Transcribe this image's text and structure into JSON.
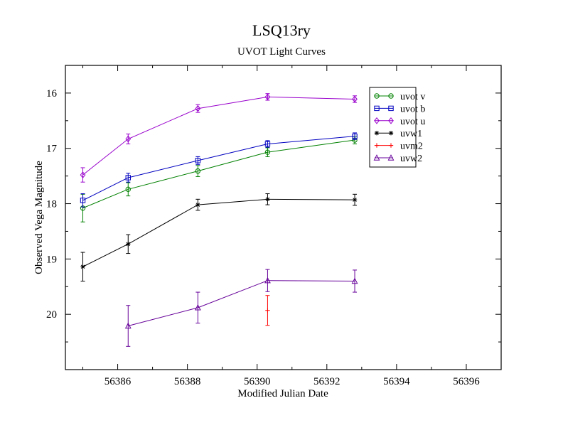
{
  "chart_data": {
    "type": "line",
    "title": "LSQ13ry",
    "subtitle": "UVOT Light Curves",
    "xlabel": "Modified Julian Date",
    "ylabel": "Observed Vega Magnitude",
    "xlim": [
      56384.5,
      56397.0
    ],
    "ylim": [
      21.0,
      15.5
    ],
    "y_inverted": true,
    "x_ticks": [
      56386,
      56388,
      56390,
      56392,
      56394,
      56396
    ],
    "y_ticks": [
      16,
      17,
      18,
      19,
      20
    ],
    "grid": false,
    "legend_position": "top-right",
    "series": [
      {
        "name": "uvot v",
        "color": "#008000",
        "marker": "circle",
        "connect": true,
        "x": [
          56385.0,
          56386.3,
          56388.3,
          56390.3,
          56392.8
        ],
        "y": [
          18.08,
          17.74,
          17.41,
          17.07,
          16.85
        ],
        "err": [
          0.25,
          0.12,
          0.1,
          0.08,
          0.07
        ]
      },
      {
        "name": "uvot b",
        "color": "#0000c0",
        "marker": "square",
        "connect": true,
        "x": [
          56385.0,
          56386.3,
          56388.3,
          56390.3,
          56392.8
        ],
        "y": [
          17.94,
          17.53,
          17.22,
          16.92,
          16.78
        ],
        "err": [
          0.12,
          0.08,
          0.07,
          0.06,
          0.06
        ]
      },
      {
        "name": "uvot u",
        "color": "#9900cc",
        "marker": "diamond",
        "connect": true,
        "x": [
          56385.0,
          56386.3,
          56388.3,
          56390.3,
          56392.8
        ],
        "y": [
          17.48,
          16.83,
          16.28,
          16.07,
          16.11
        ],
        "err": [
          0.13,
          0.09,
          0.07,
          0.06,
          0.06
        ]
      },
      {
        "name": "uvw1",
        "color": "#000000",
        "marker": "star",
        "connect": true,
        "x": [
          56385.0,
          56386.3,
          56388.3,
          56390.3,
          56392.8
        ],
        "y": [
          19.14,
          18.73,
          18.02,
          17.92,
          17.93
        ],
        "err": [
          0.26,
          0.17,
          0.1,
          0.1,
          0.1
        ]
      },
      {
        "name": "uvm2",
        "color": "#ff0000",
        "marker": "plus",
        "connect": false,
        "x": [
          56390.3
        ],
        "y": [
          19.93
        ],
        "err": [
          0.27
        ]
      },
      {
        "name": "uvw2",
        "color": "#660099",
        "marker": "triangle",
        "connect": true,
        "x": [
          56386.3,
          56388.3,
          56390.3,
          56392.8
        ],
        "y": [
          20.21,
          19.88,
          19.39,
          19.4
        ],
        "err": [
          0.37,
          0.28,
          0.2,
          0.2
        ]
      }
    ]
  }
}
